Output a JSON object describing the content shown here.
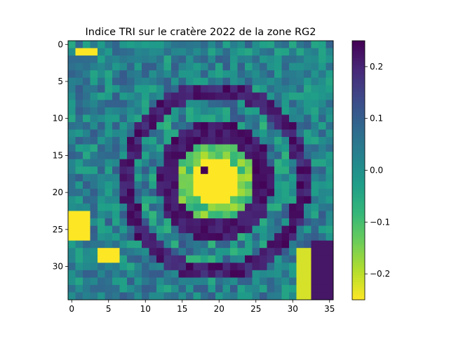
{
  "chart_data": {
    "type": "heatmap",
    "title": "Indice TRI sur le cratère 2022 de la zone RG2",
    "xlabel": "",
    "ylabel": "",
    "nrows": 35,
    "ncols": 36,
    "x_ticks": [
      0,
      5,
      10,
      15,
      20,
      25,
      30,
      35
    ],
    "y_ticks": [
      0,
      5,
      10,
      15,
      20,
      25,
      30
    ],
    "colorbar": {
      "vmin": -0.25,
      "vmax": 0.25,
      "ticks": [
        -0.2,
        -0.1,
        0.0,
        0.1,
        0.2
      ],
      "tick_labels": [
        "−0.2",
        "−0.1",
        "0.0",
        "0.1",
        "0.2"
      ],
      "colormap": "viridis_r"
    },
    "pattern_summary": {
      "background": 0.03,
      "center": [
        18.5,
        19.5
      ],
      "bright_core_value": -0.25,
      "dark_ring_value": 0.25,
      "outer_dark_ring_value": 0.25
    }
  }
}
